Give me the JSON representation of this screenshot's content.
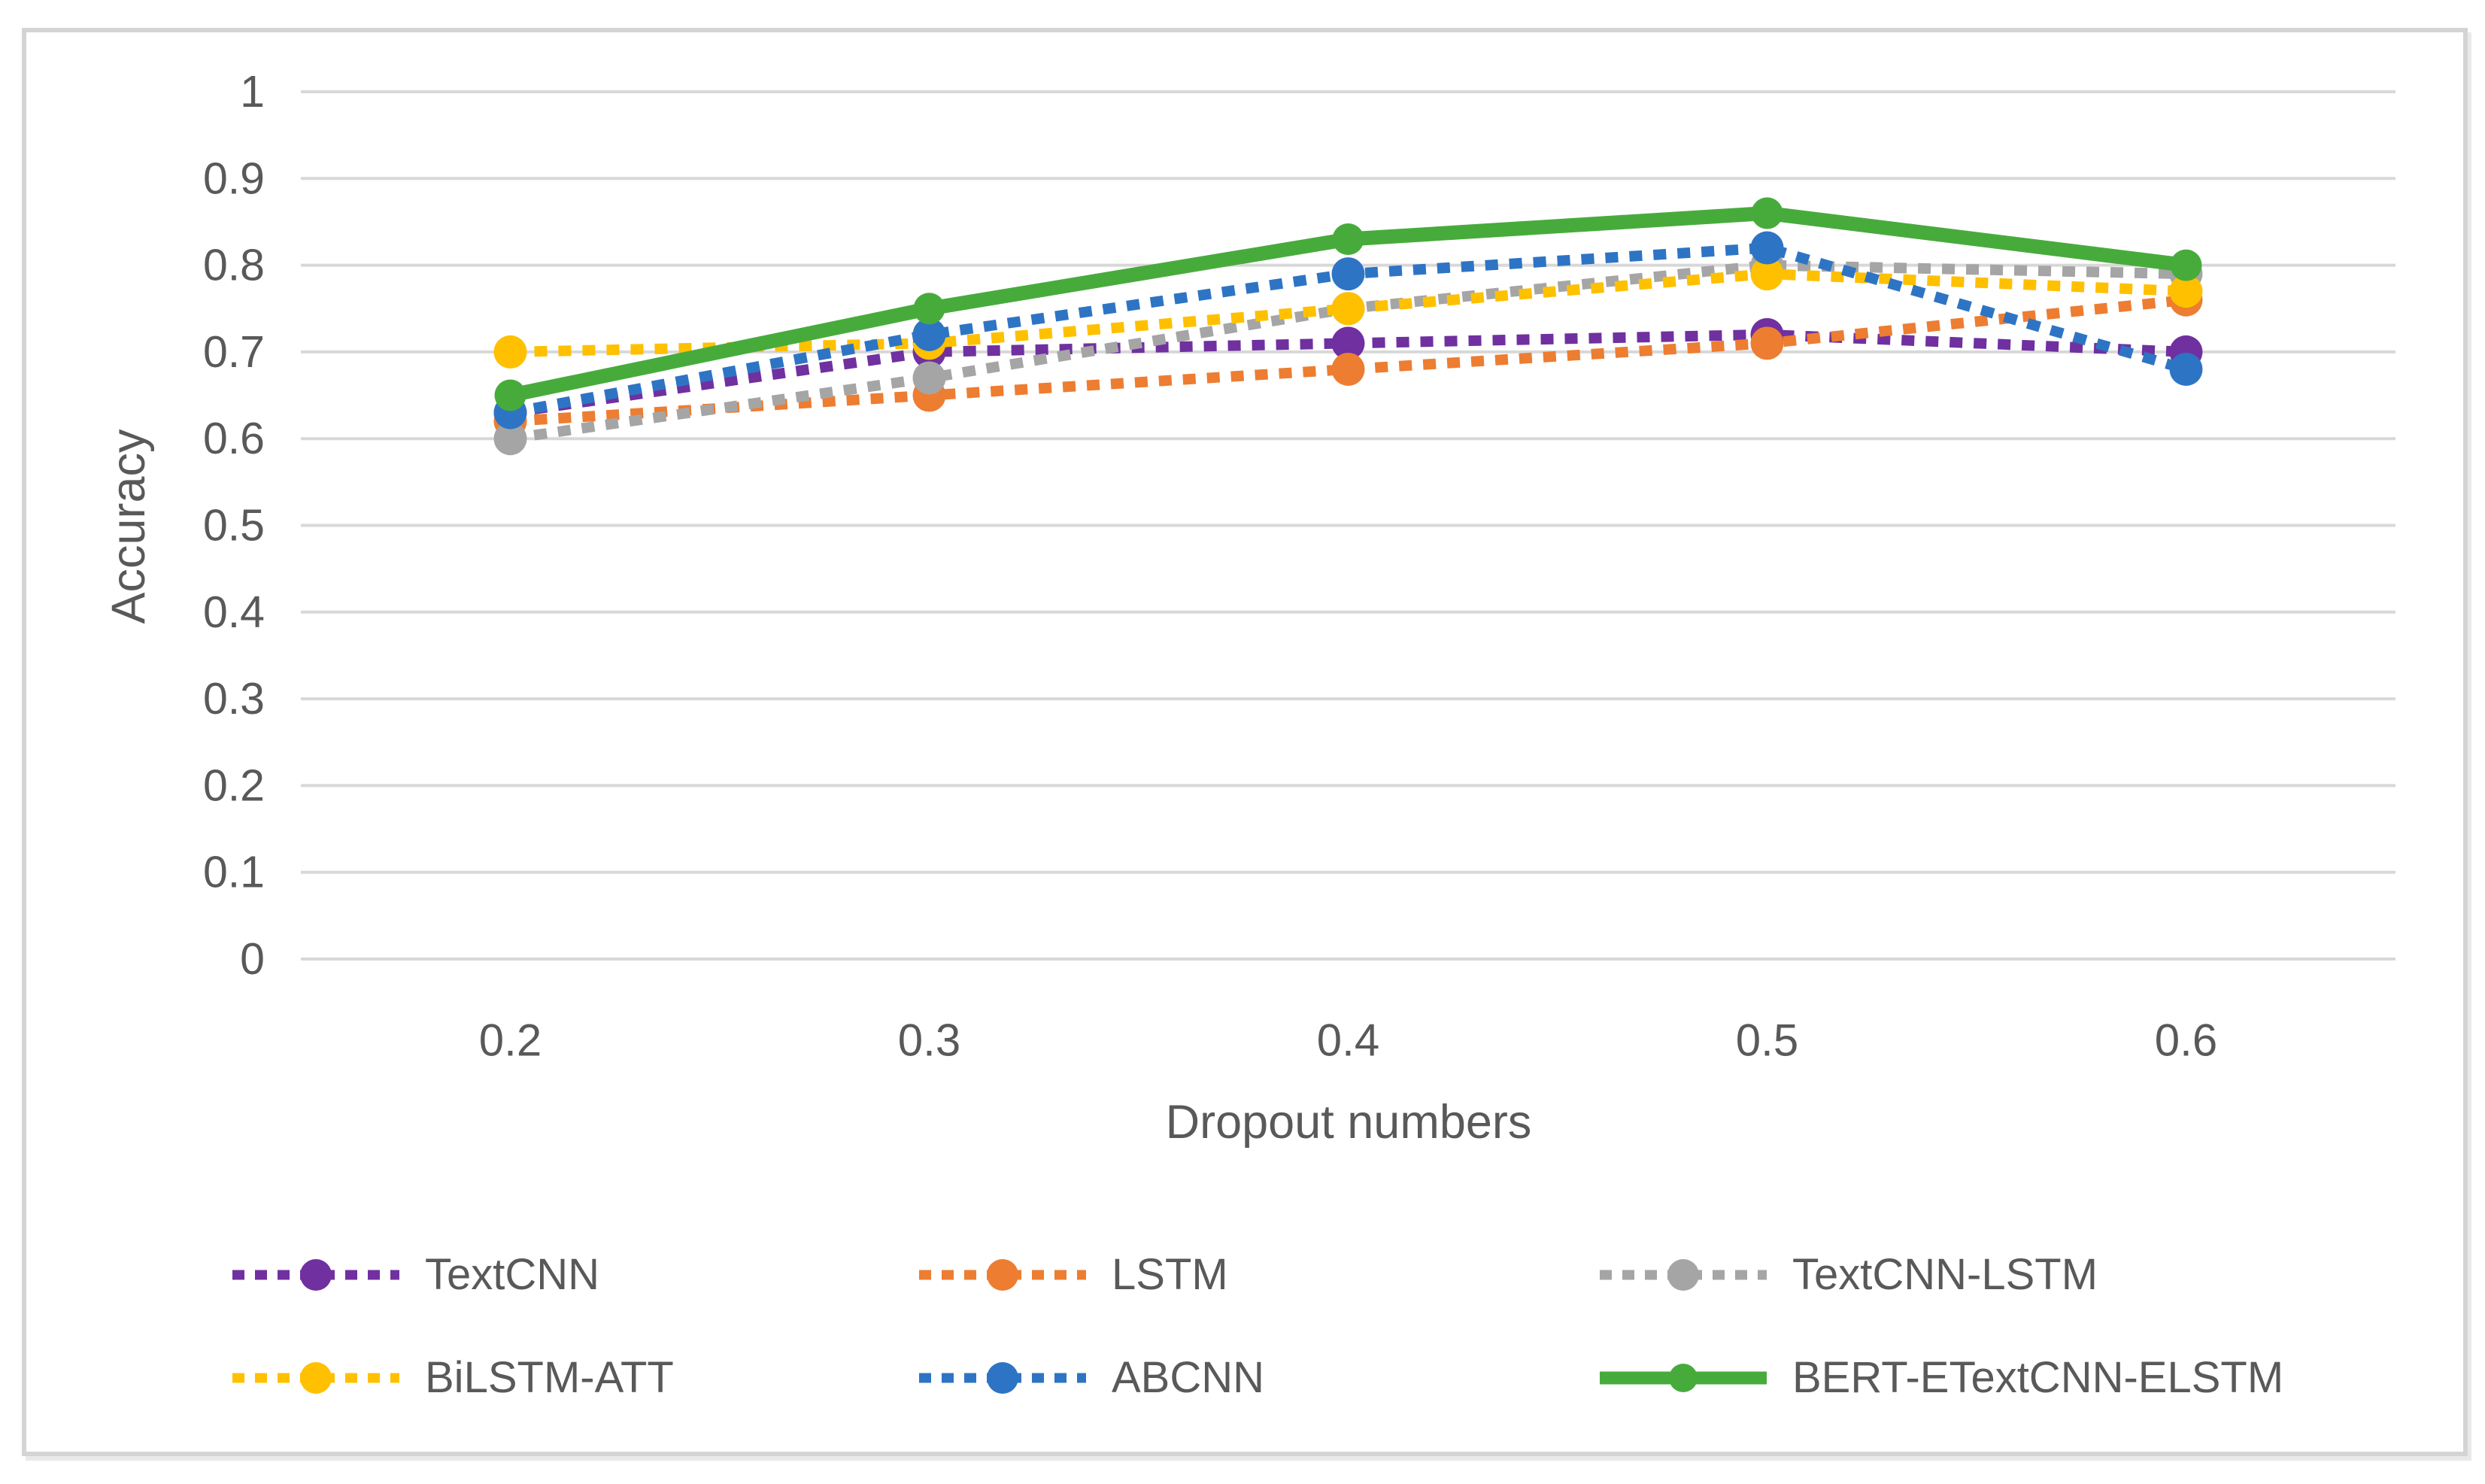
{
  "figure": {
    "y_axis": {
      "title": "Accuracy",
      "ticks": [
        "1",
        "0.9",
        "0.8",
        "0.7",
        "0.6",
        "0.5",
        "0.4",
        "0.3",
        "0.2",
        "0.1",
        "0"
      ]
    },
    "x_axis": {
      "title": "Dropout numbers",
      "ticks": [
        "0.2",
        "0.3",
        "0.4",
        "0.5",
        "0.6"
      ]
    }
  },
  "chart_data": {
    "type": "line",
    "title": "",
    "x": [
      0.2,
      0.3,
      0.4,
      0.5,
      0.6
    ],
    "x_tick_labels": [
      "0.2",
      "0.3",
      "0.4",
      "0.5",
      "0.6"
    ],
    "xlabel": "Dropout numbers",
    "ylabel": "Accuracy",
    "ylim": [
      0,
      1
    ],
    "y_tick_step": 0.1,
    "y_tick_labels": [
      "1",
      "0.9",
      "0.8",
      "0.7",
      "0.6",
      "0.5",
      "0.4",
      "0.3",
      "0.2",
      "0.1",
      "0"
    ],
    "grid": "horizontal",
    "legend_position": "bottom",
    "series": [
      {
        "name": "TextCNN",
        "color": "#7030A0",
        "line_style": "dotted",
        "marker": "circle",
        "values": [
          0.63,
          0.7,
          0.71,
          0.72,
          0.7
        ]
      },
      {
        "name": "LSTM",
        "color": "#ED7D31",
        "line_style": "dotted",
        "marker": "circle",
        "values": [
          0.62,
          0.65,
          0.68,
          0.71,
          0.76
        ]
      },
      {
        "name": "TextCNN-LSTM",
        "color": "#A5A5A5",
        "line_style": "dotted",
        "marker": "circle",
        "values": [
          0.6,
          0.67,
          0.75,
          0.8,
          0.79
        ]
      },
      {
        "name": "BiLSTM-ATT",
        "color": "#FFC000",
        "line_style": "dotted",
        "marker": "circle",
        "values": [
          0.7,
          0.71,
          0.75,
          0.79,
          0.77
        ]
      },
      {
        "name": "ABCNN",
        "color": "#2E74C4",
        "line_style": "dotted",
        "marker": "circle",
        "values": [
          0.63,
          0.72,
          0.79,
          0.82,
          0.68
        ]
      },
      {
        "name": "BERT-ETextCNN-ELSTM",
        "color": "#47AB3C",
        "line_style": "solid",
        "marker": "circle",
        "values": [
          0.65,
          0.75,
          0.83,
          0.86,
          0.8
        ]
      }
    ],
    "colors": {
      "grid": "#D8D8D8",
      "text": "#595959",
      "background": "#FFFFFF",
      "frame_border": "#D4D4D4"
    }
  }
}
